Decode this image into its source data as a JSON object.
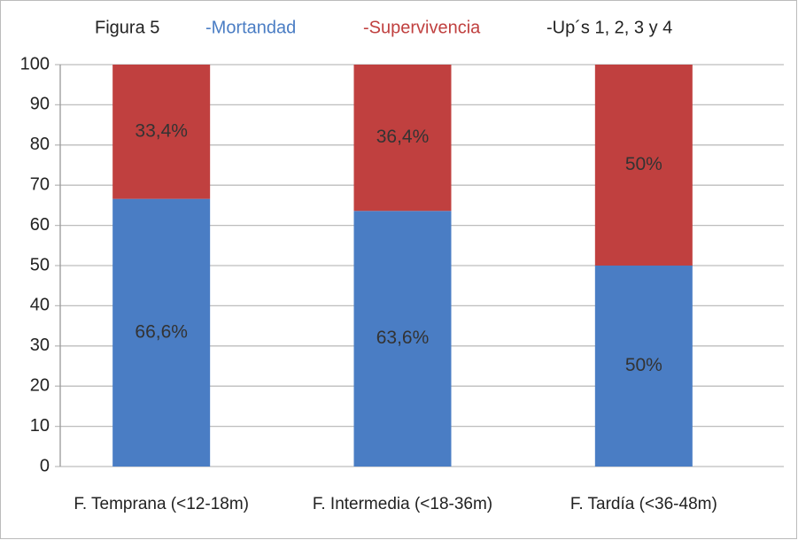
{
  "chart_data": {
    "type": "stacked_bar",
    "title": "Figura 5",
    "subtitle": "-Up´s 1, 2, 3 y 4",
    "categories": [
      "F. Temprana (<12-18m)",
      "F. Intermedia (<18-36m)",
      "F. Tardía (<36-48m)"
    ],
    "series": [
      {
        "name": "-Mortandad",
        "color": "#4a7dc4",
        "values": [
          66.6,
          63.6,
          50
        ],
        "value_labels": [
          "66,6%",
          "63,6%",
          "50%"
        ]
      },
      {
        "name": "-Supervivencia",
        "color": "#c0403f",
        "values": [
          33.4,
          36.4,
          50
        ],
        "value_labels": [
          "33,4%",
          "36,4%",
          "50%"
        ]
      }
    ],
    "ylim": [
      0,
      100
    ],
    "yticks": [
      0,
      10,
      20,
      30,
      40,
      50,
      60,
      70,
      80,
      90,
      100
    ],
    "grid": true
  }
}
